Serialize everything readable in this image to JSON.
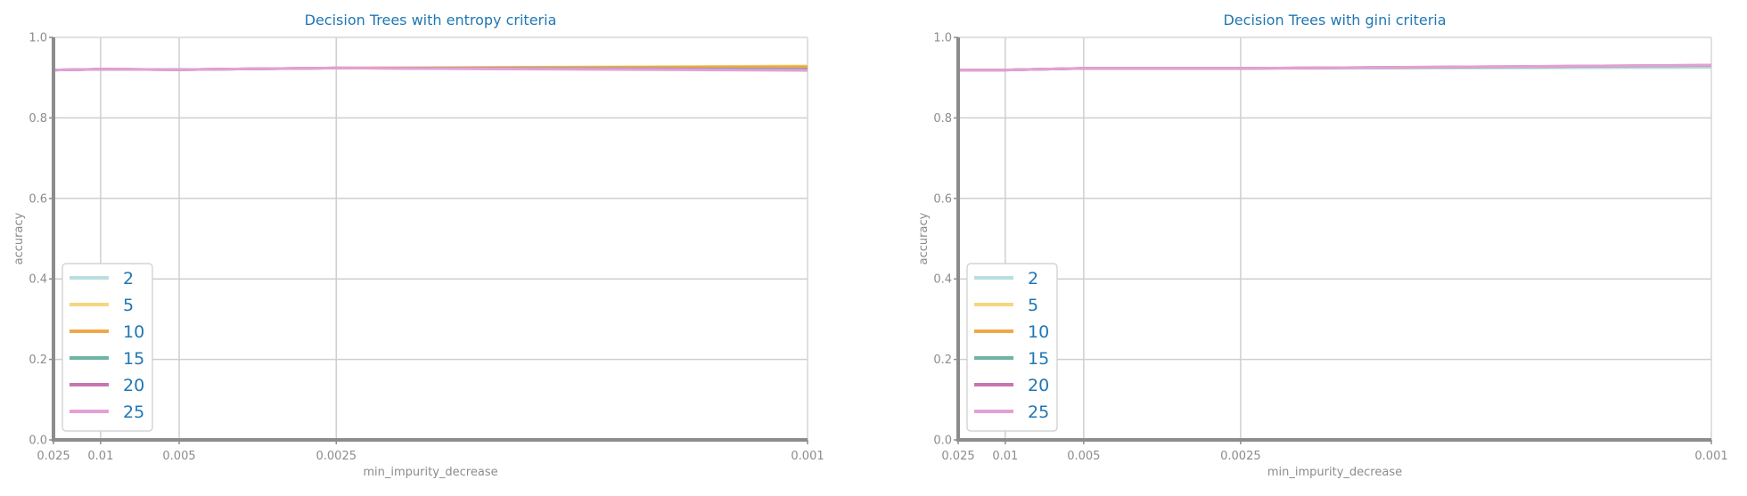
{
  "chart_data": [
    {
      "type": "line",
      "title": "Decision Trees with entropy criteria",
      "xlabel": "min_impurity_decrease",
      "ylabel": "accuracy",
      "x_scale": "reciprocal",
      "x": [
        0.025,
        0.01,
        0.005,
        0.0025,
        0.001
      ],
      "x_tick_labels": [
        "0.025",
        "0.01",
        "0.005",
        "0.0025",
        "0.001"
      ],
      "ylim": [
        0.0,
        1.0
      ],
      "y_ticks": [
        "0.0",
        "0.2",
        "0.4",
        "0.6",
        "0.8",
        "1.0"
      ],
      "grid": true,
      "legend_position": "lower-left",
      "series": [
        {
          "name": "2",
          "color": "#b9dee0",
          "values": [
            0.919,
            0.921,
            0.92,
            0.924,
            0.924
          ]
        },
        {
          "name": "5",
          "color": "#f5d67e",
          "values": [
            0.919,
            0.921,
            0.92,
            0.924,
            0.929
          ]
        },
        {
          "name": "10",
          "color": "#f0a848",
          "values": [
            0.919,
            0.921,
            0.92,
            0.924,
            0.927
          ]
        },
        {
          "name": "15",
          "color": "#6cb5a5",
          "values": [
            0.919,
            0.921,
            0.92,
            0.924,
            0.921
          ]
        },
        {
          "name": "20",
          "color": "#c875b2",
          "values": [
            0.919,
            0.921,
            0.92,
            0.924,
            0.919
          ]
        },
        {
          "name": "25",
          "color": "#e3a0d6",
          "values": [
            0.919,
            0.921,
            0.92,
            0.924,
            0.918
          ]
        }
      ]
    },
    {
      "type": "line",
      "title": "Decision Trees with gini criteria",
      "xlabel": "min_impurity_decrease",
      "ylabel": "accuracy",
      "x_scale": "reciprocal",
      "x": [
        0.025,
        0.01,
        0.005,
        0.0025,
        0.001
      ],
      "x_tick_labels": [
        "0.025",
        "0.01",
        "0.005",
        "0.0025",
        "0.001"
      ],
      "ylim": [
        0.0,
        1.0
      ],
      "y_ticks": [
        "0.0",
        "0.2",
        "0.4",
        "0.6",
        "0.8",
        "1.0"
      ],
      "grid": true,
      "legend_position": "lower-left",
      "series": [
        {
          "name": "2",
          "color": "#b9dee0",
          "values": [
            0.919,
            0.919,
            0.923,
            0.923,
            0.925
          ]
        },
        {
          "name": "5",
          "color": "#f5d67e",
          "values": [
            0.919,
            0.919,
            0.923,
            0.923,
            0.93
          ]
        },
        {
          "name": "10",
          "color": "#f0a848",
          "values": [
            0.919,
            0.919,
            0.923,
            0.923,
            0.93
          ]
        },
        {
          "name": "15",
          "color": "#6cb5a5",
          "values": [
            0.919,
            0.919,
            0.923,
            0.923,
            0.93
          ]
        },
        {
          "name": "20",
          "color": "#c875b2",
          "values": [
            0.919,
            0.919,
            0.923,
            0.923,
            0.931
          ]
        },
        {
          "name": "25",
          "color": "#e3a0d6",
          "values": [
            0.919,
            0.919,
            0.923,
            0.923,
            0.931
          ]
        }
      ]
    }
  ]
}
